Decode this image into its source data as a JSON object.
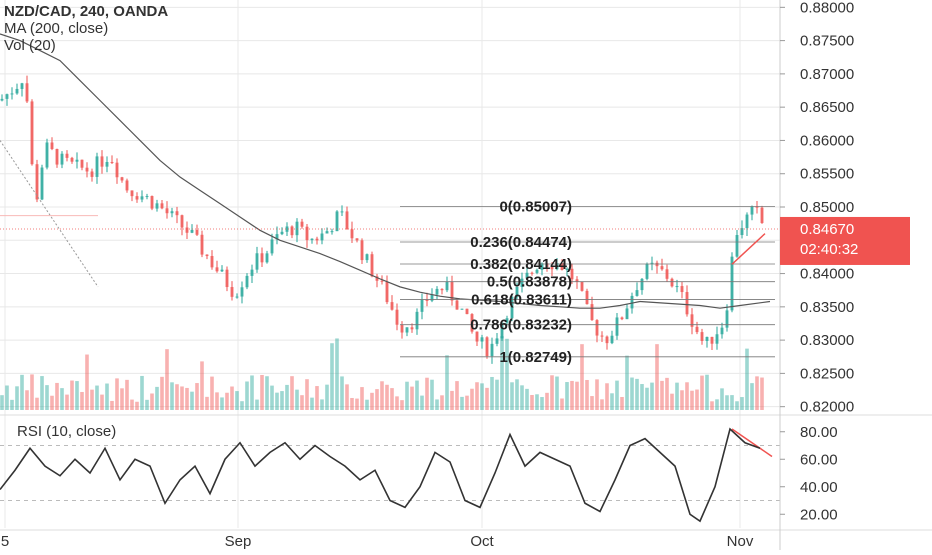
{
  "header": {
    "symbol_line": "NZD/CAD, 240, OANDA",
    "ma_line": "MA (200, close)",
    "vol_line": "Vol (20)"
  },
  "price_axis": {
    "ticks": [
      "0.88000",
      "0.87500",
      "0.87000",
      "0.86500",
      "0.86000",
      "0.85500",
      "0.85000",
      "0.84500",
      "0.84000",
      "0.83500",
      "0.83000",
      "0.82500",
      "0.82000"
    ],
    "last_price": "0.84670",
    "countdown": "02:40:32",
    "last_price_color": "#f05350"
  },
  "rsi": {
    "title": "RSI (10, close)",
    "ticks": [
      "80.00",
      "60.00",
      "40.00",
      "20.00"
    ]
  },
  "time_axis": {
    "labels": [
      "5",
      "Sep",
      "Oct",
      "Nov"
    ]
  },
  "fib_levels": [
    {
      "label": "0(0.85007)",
      "price": 0.85007
    },
    {
      "label": "0.236(0.84474)",
      "price": 0.84474
    },
    {
      "label": "0.382(0.84144)",
      "price": 0.84144
    },
    {
      "label": "0.5(0.83878)",
      "price": 0.83878
    },
    {
      "label": "0.618(0.83611)",
      "price": 0.83611
    },
    {
      "label": "0.786(0.83232)",
      "price": 0.83232
    },
    {
      "label": "1(0.82749)",
      "price": 0.82749
    }
  ],
  "colors": {
    "up": "#26a69a",
    "down": "#ef5350",
    "ma": "#555555",
    "rsi": "#333333",
    "grid": "#e8e8e8",
    "trendline": "#f05350"
  },
  "chart_data": {
    "type": "candlestick",
    "ylim": [
      0.8195,
      0.8805
    ],
    "rsi_ylim": [
      10,
      90
    ],
    "ma_200": [
      [
        0,
        0.876
      ],
      [
        20,
        0.875
      ],
      [
        40,
        0.8735
      ],
      [
        60,
        0.872
      ],
      [
        80,
        0.869
      ],
      [
        100,
        0.866
      ],
      [
        120,
        0.863
      ],
      [
        140,
        0.86
      ],
      [
        160,
        0.857
      ],
      [
        180,
        0.8545
      ],
      [
        200,
        0.8525
      ],
      [
        220,
        0.8505
      ],
      [
        240,
        0.8485
      ],
      [
        260,
        0.8465
      ],
      [
        280,
        0.845
      ],
      [
        300,
        0.844
      ],
      [
        320,
        0.843
      ],
      [
        340,
        0.8418
      ],
      [
        360,
        0.8405
      ],
      [
        380,
        0.8392
      ],
      [
        400,
        0.838
      ],
      [
        420,
        0.8372
      ],
      [
        440,
        0.8366
      ],
      [
        460,
        0.8362
      ],
      [
        480,
        0.836
      ],
      [
        500,
        0.8358
      ],
      [
        520,
        0.8355
      ],
      [
        540,
        0.8352
      ],
      [
        560,
        0.835
      ],
      [
        580,
        0.8348
      ],
      [
        600,
        0.8348
      ],
      [
        620,
        0.8352
      ],
      [
        640,
        0.8358
      ]
    ],
    "price_path": [
      [
        0,
        0.866
      ],
      [
        15,
        0.868
      ],
      [
        25,
        0.87
      ],
      [
        35,
        0.85
      ],
      [
        45,
        0.859
      ],
      [
        60,
        0.857
      ],
      [
        75,
        0.856
      ],
      [
        90,
        0.8555
      ],
      [
        110,
        0.858
      ],
      [
        125,
        0.853
      ],
      [
        145,
        0.8515
      ],
      [
        160,
        0.85
      ],
      [
        175,
        0.848
      ],
      [
        190,
        0.846
      ],
      [
        205,
        0.843
      ],
      [
        220,
        0.84
      ],
      [
        235,
        0.837
      ],
      [
        250,
        0.841
      ],
      [
        265,
        0.843
      ],
      [
        280,
        0.846
      ],
      [
        295,
        0.847
      ],
      [
        310,
        0.845
      ],
      [
        325,
        0.846
      ],
      [
        340,
        0.849
      ],
      [
        355,
        0.845
      ],
      [
        370,
        0.841
      ],
      [
        385,
        0.837
      ],
      [
        400,
        0.832
      ],
      [
        415,
        0.833
      ],
      [
        430,
        0.837
      ],
      [
        445,
        0.838
      ],
      [
        460,
        0.835
      ],
      [
        475,
        0.83
      ],
      [
        490,
        0.8285
      ],
      [
        505,
        0.834
      ],
      [
        520,
        0.838
      ],
      [
        540,
        0.842
      ],
      [
        560,
        0.8415
      ],
      [
        575,
        0.839
      ],
      [
        590,
        0.833
      ],
      [
        605,
        0.83
      ],
      [
        620,
        0.833
      ],
      [
        635,
        0.838
      ],
      [
        650,
        0.841
      ],
      [
        665,
        0.84
      ],
      [
        680,
        0.837
      ],
      [
        695,
        0.832
      ],
      [
        705,
        0.829
      ],
      [
        715,
        0.831
      ],
      [
        725,
        0.833
      ],
      [
        735,
        0.846
      ],
      [
        745,
        0.848
      ],
      [
        755,
        0.8495
      ],
      [
        765,
        0.8467
      ]
    ],
    "rsi_path": [
      [
        0,
        38
      ],
      [
        15,
        52
      ],
      [
        30,
        68
      ],
      [
        45,
        55
      ],
      [
        60,
        48
      ],
      [
        75,
        60
      ],
      [
        90,
        50
      ],
      [
        105,
        68
      ],
      [
        120,
        45
      ],
      [
        135,
        60
      ],
      [
        150,
        55
      ],
      [
        165,
        28
      ],
      [
        180,
        45
      ],
      [
        195,
        55
      ],
      [
        210,
        35
      ],
      [
        225,
        60
      ],
      [
        240,
        72
      ],
      [
        255,
        55
      ],
      [
        270,
        65
      ],
      [
        285,
        72
      ],
      [
        300,
        60
      ],
      [
        315,
        70
      ],
      [
        330,
        62
      ],
      [
        345,
        55
      ],
      [
        360,
        45
      ],
      [
        375,
        52
      ],
      [
        390,
        30
      ],
      [
        405,
        25
      ],
      [
        420,
        40
      ],
      [
        435,
        65
      ],
      [
        450,
        58
      ],
      [
        465,
        30
      ],
      [
        480,
        25
      ],
      [
        495,
        50
      ],
      [
        510,
        78
      ],
      [
        525,
        55
      ],
      [
        540,
        65
      ],
      [
        555,
        60
      ],
      [
        570,
        55
      ],
      [
        585,
        28
      ],
      [
        600,
        22
      ],
      [
        615,
        45
      ],
      [
        630,
        70
      ],
      [
        645,
        75
      ],
      [
        660,
        65
      ],
      [
        675,
        55
      ],
      [
        690,
        20
      ],
      [
        700,
        15
      ],
      [
        715,
        40
      ],
      [
        730,
        82
      ],
      [
        745,
        72
      ],
      [
        760,
        68
      ]
    ],
    "time_marks": [
      [
        5,
        "5"
      ],
      [
        238,
        "Sep"
      ],
      [
        482,
        "Oct"
      ],
      [
        740,
        "Nov"
      ]
    ]
  }
}
